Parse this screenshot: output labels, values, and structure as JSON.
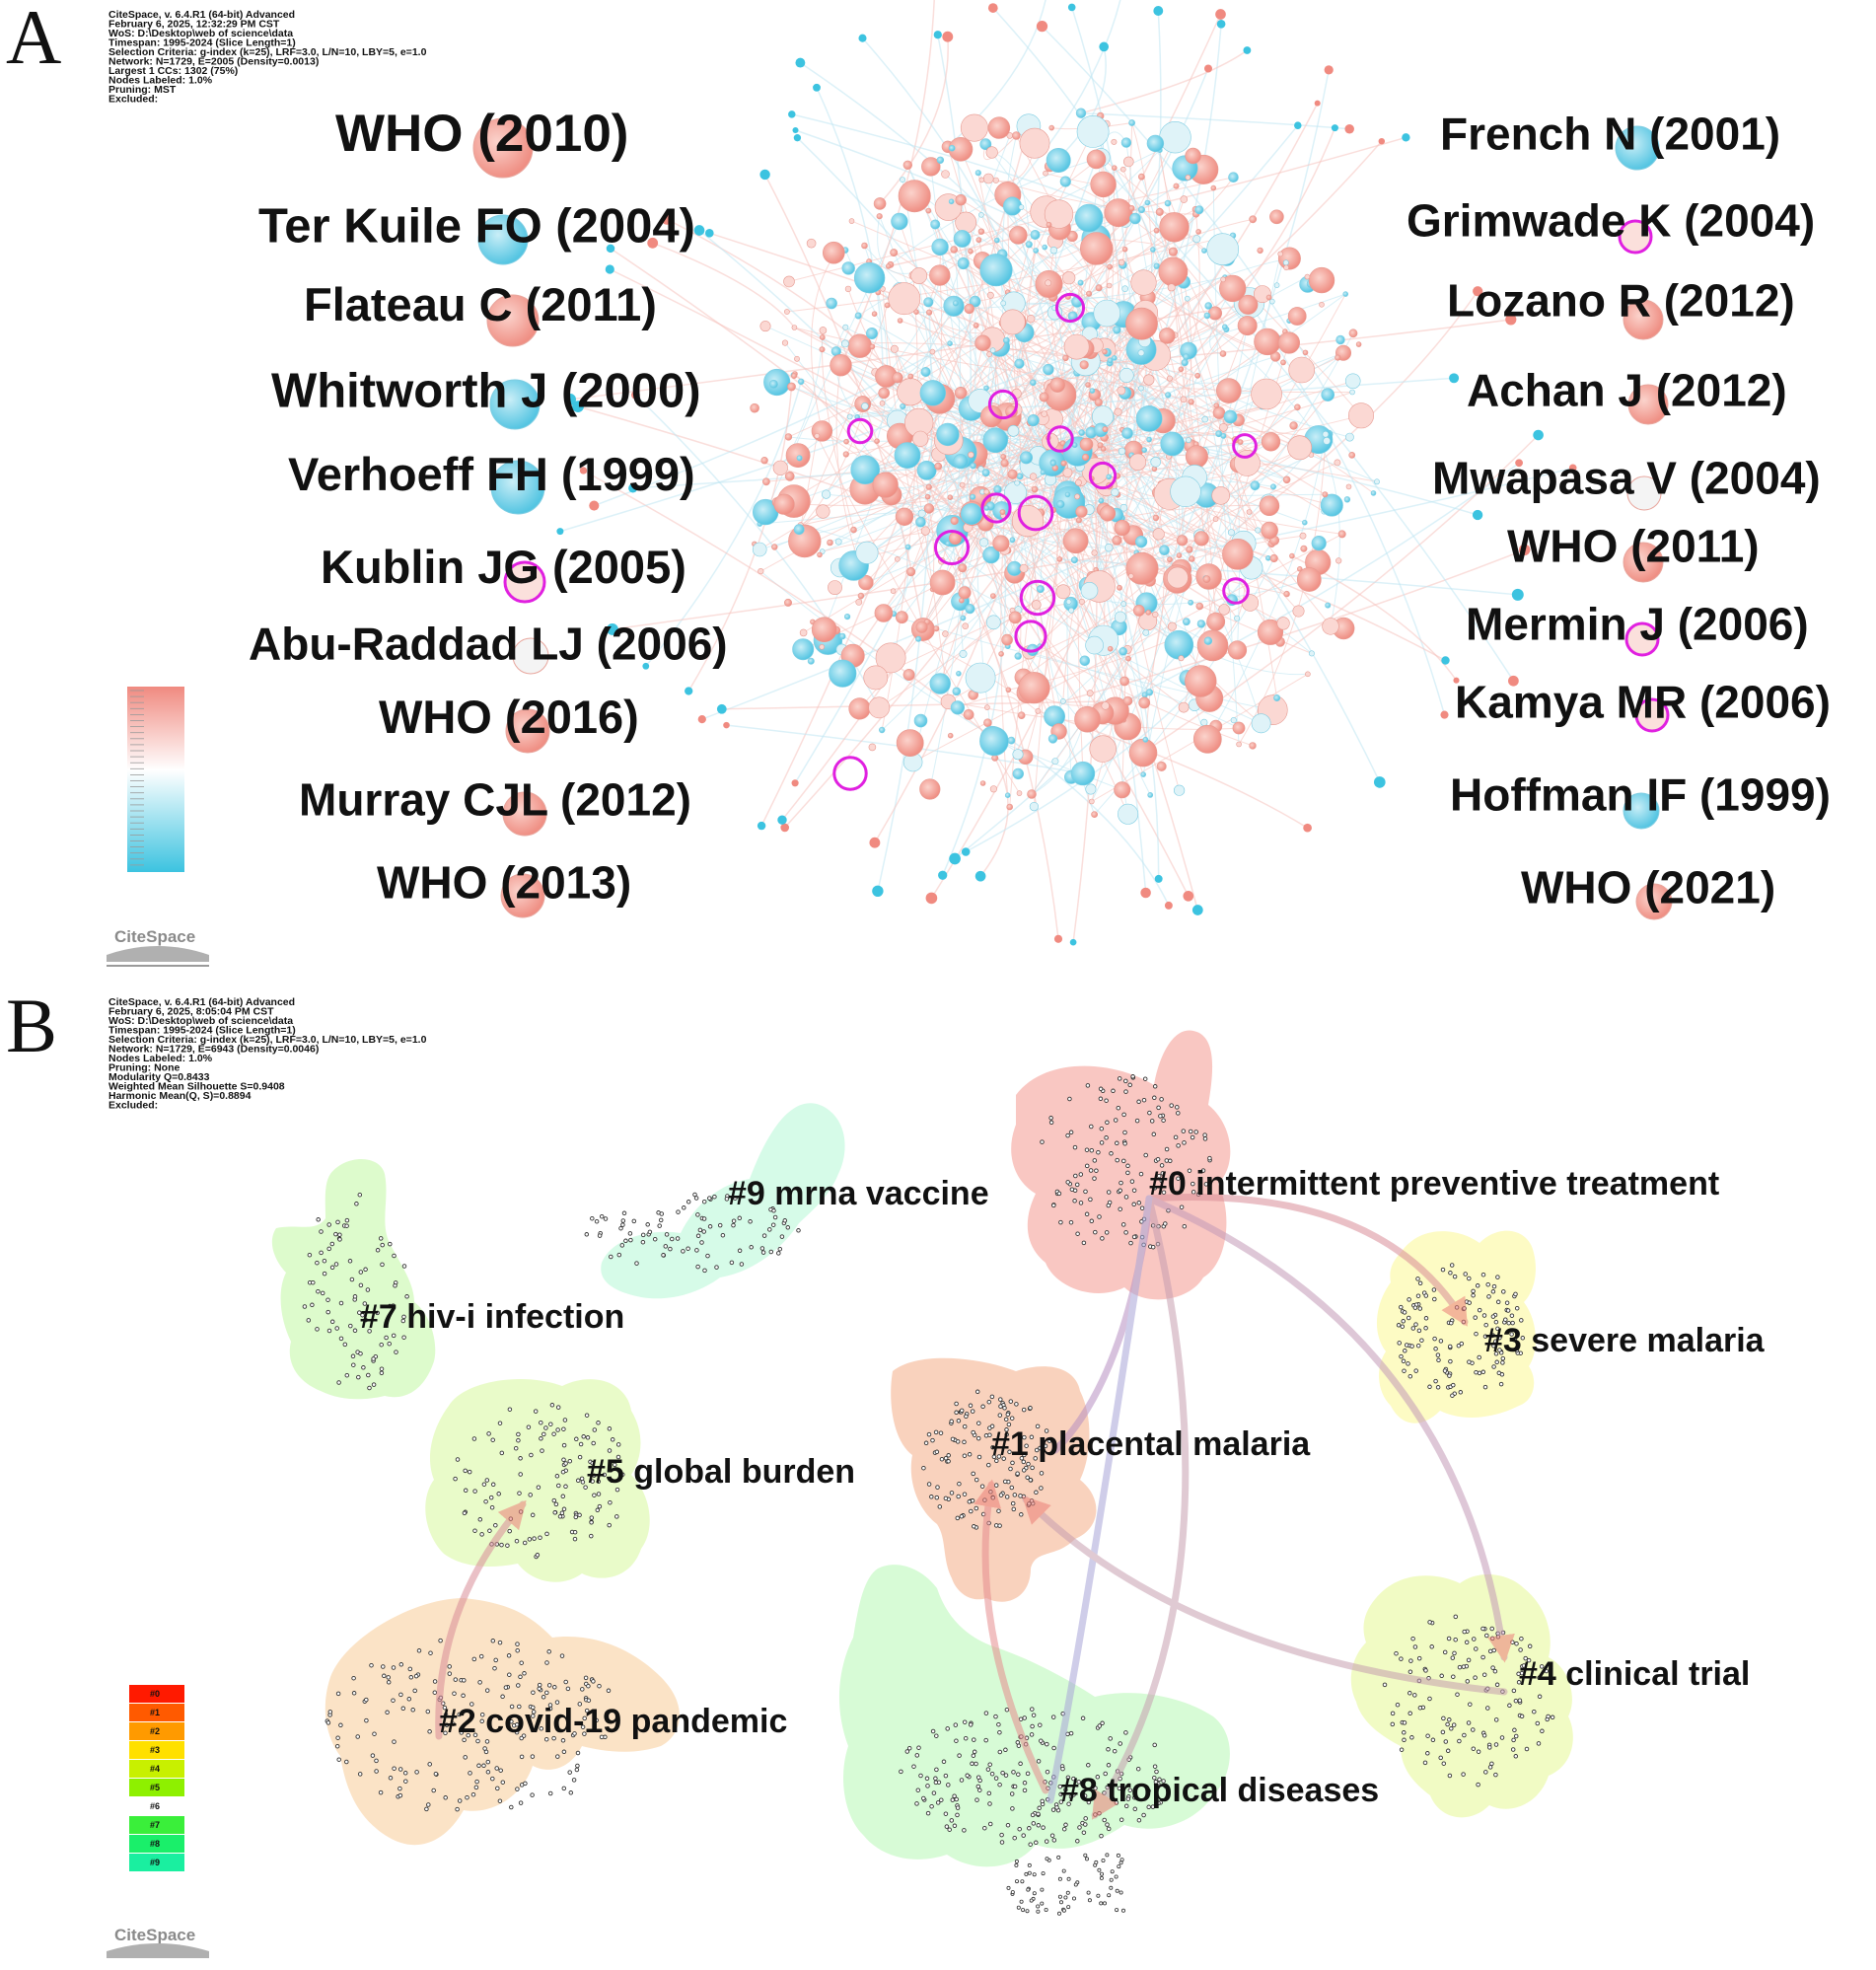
{
  "panels": [
    {
      "letter": "A",
      "meta_lines": [
        "CiteSpace, v. 6.4.R1 (64-bit) Advanced",
        "February 6, 2025, 12:32:29 PM CST",
        "WoS: D:\\Desktop\\web of science\\data",
        "Timespan: 1995-2024 (Slice Length=1)",
        "Selection Criteria: g-index (k=25), LRF=3.0, L/N=10, LBY=5, e=1.0",
        "Network: N=1729, E=2005 (Density=0.0013)",
        "Largest 1 CCs: 1302 (75%)",
        "Nodes Labeled: 1.0%",
        "Pruning: MST",
        "Excluded:"
      ],
      "logo": "CiteSpace",
      "references_left": [
        "WHO (2010)",
        "Ter Kuile FO (2004)",
        "Flateau C (2011)",
        "Whitworth J (2000)",
        "Verhoeff FH (1999)",
        "Kublin JG (2005)",
        "Abu-Raddad LJ (2006)",
        "WHO (2016)",
        "Murray CJL (2012)",
        "WHO (2013)"
      ],
      "references_right": [
        "French N (2001)",
        "Grimwade K (2004)",
        "Lozano R (2012)",
        "Achan J (2012)",
        "Mwapasa V (2004)",
        "WHO (2011)",
        "Mermin J (2006)",
        "Kamya MR (2006)",
        "Hoffman IF (1999)",
        "WHO (2021)"
      ],
      "colors": {
        "recent": "#f08a80",
        "old": "#3cc3e0",
        "burst_ring": "#e020e0"
      }
    },
    {
      "letter": "B",
      "meta_lines": [
        "CiteSpace, v. 6.4.R1 (64-bit) Advanced",
        "February 6, 2025, 8:05:04 PM CST",
        "WoS: D:\\Desktop\\web of science\\data",
        "Timespan: 1995-2024 (Slice Length=1)",
        "Selection Criteria: g-index (k=25), LRF=3.0, L/N=10, LBY=5, e=1.0",
        "Network: N=1729, E=6943 (Density=0.0046)",
        "Nodes Labeled: 1.0%",
        "Pruning: None",
        "Modularity Q=0.8433",
        "Weighted Mean Silhouette S=0.9408",
        "Harmonic Mean(Q, S)=0.8894",
        "Excluded:"
      ],
      "logo": "CiteSpace",
      "clusters": [
        {
          "id": "#0",
          "label": "#0 intermittent preventive treatment",
          "color": "#f9c7c2"
        },
        {
          "id": "#1",
          "label": "#1 placental malaria",
          "color": "#f9d2bd"
        },
        {
          "id": "#2",
          "label": "#2 covid-19 pandemic",
          "color": "#fbe3c6"
        },
        {
          "id": "#3",
          "label": "#3 severe malaria",
          "color": "#fdfbc4"
        },
        {
          "id": "#4",
          "label": "#4 clinical trial",
          "color": "#f1fbc4"
        },
        {
          "id": "#5",
          "label": "#5 global burden",
          "color": "#e9fbc9"
        },
        {
          "id": "#7",
          "label": "#7 hiv-i infection",
          "color": "#ddfbcc"
        },
        {
          "id": "#8",
          "label": "#8 tropical diseases",
          "color": "#d7fbd6"
        },
        {
          "id": "#9",
          "label": "#9 mrna vaccine",
          "color": "#d6fbe8"
        }
      ],
      "legend": [
        {
          "label": "#0",
          "color": "#ff1a00"
        },
        {
          "label": "#1",
          "color": "#ff5a00"
        },
        {
          "label": "#2",
          "color": "#ff9a00"
        },
        {
          "label": "#3",
          "color": "#ffe000"
        },
        {
          "label": "#4",
          "color": "#c8f000"
        },
        {
          "label": "#5",
          "color": "#8ef000"
        },
        {
          "label": "#6",
          "color": "#ffffff"
        },
        {
          "label": "#7",
          "color": "#3aef3a"
        },
        {
          "label": "#8",
          "color": "#1aef6a"
        },
        {
          "label": "#9",
          "color": "#1aefa0"
        }
      ],
      "arrows": [
        {
          "from": "#2",
          "to": "#5"
        },
        {
          "from": "#1",
          "to": "#0"
        },
        {
          "from": "#0",
          "to": "#3"
        },
        {
          "from": "#0",
          "to": "#4"
        },
        {
          "from": "#0",
          "to": "#8"
        },
        {
          "from": "#8",
          "to": "#0"
        },
        {
          "from": "#8",
          "to": "#1"
        },
        {
          "from": "#4",
          "to": "#1"
        }
      ]
    }
  ]
}
